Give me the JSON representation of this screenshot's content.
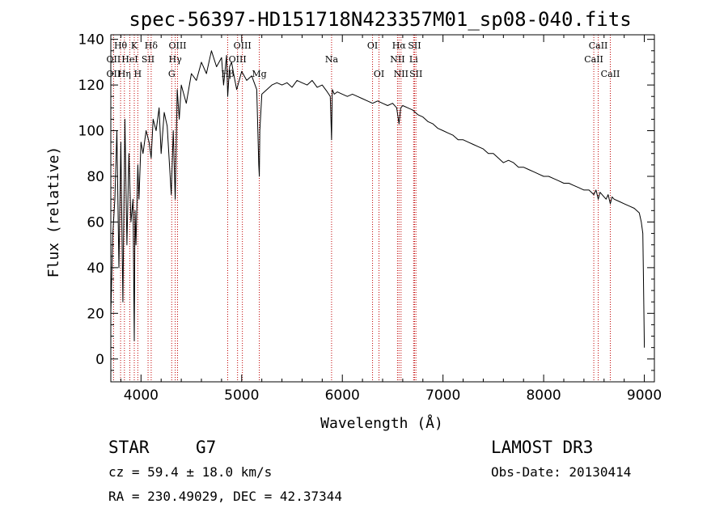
{
  "chart_data": {
    "type": "line",
    "title": "spec-56397-HD151718N423357M01_sp08-040.fits",
    "xlabel": "Wavelength (Å)",
    "ylabel": "Flux (relative)",
    "xlim": [
      3700,
      9100
    ],
    "ylim": [
      -10,
      142
    ],
    "xticks": [
      4000,
      5000,
      6000,
      7000,
      8000,
      9000
    ],
    "xtick_labels": [
      "4000",
      "5000",
      "6000",
      "7000",
      "8000",
      "9000"
    ],
    "yticks": [
      0,
      20,
      40,
      60,
      80,
      100,
      120,
      140
    ],
    "ytick_labels": [
      "0",
      "20",
      "40",
      "60",
      "80",
      "100",
      "120",
      "140"
    ],
    "series": [
      {
        "name": "spectrum",
        "color": "#000000",
        "x": [
          3700,
          3720,
          3740,
          3760,
          3780,
          3800,
          3820,
          3840,
          3860,
          3880,
          3900,
          3920,
          3933,
          3940,
          3950,
          3968,
          3980,
          4000,
          4020,
          4050,
          4080,
          4101,
          4120,
          4150,
          4180,
          4200,
          4230,
          4260,
          4300,
          4320,
          4340,
          4360,
          4380,
          4400,
          4450,
          4500,
          4550,
          4600,
          4650,
          4700,
          4750,
          4800,
          4820,
          4850,
          4861,
          4880,
          4900,
          4920,
          4950,
          5000,
          5050,
          5100,
          5150,
          5170,
          5175,
          5180,
          5200,
          5250,
          5300,
          5350,
          5400,
          5450,
          5500,
          5550,
          5600,
          5650,
          5700,
          5750,
          5800,
          5850,
          5880,
          5893,
          5900,
          5920,
          5950,
          6000,
          6050,
          6100,
          6150,
          6200,
          6250,
          6300,
          6350,
          6400,
          6450,
          6500,
          6540,
          6563,
          6580,
          6600,
          6650,
          6700,
          6750,
          6800,
          6850,
          6900,
          6950,
          7000,
          7050,
          7100,
          7150,
          7200,
          7250,
          7300,
          7350,
          7400,
          7450,
          7500,
          7550,
          7600,
          7650,
          7700,
          7750,
          7800,
          7850,
          7900,
          7950,
          8000,
          8050,
          8100,
          8150,
          8200,
          8250,
          8300,
          8350,
          8400,
          8450,
          8498,
          8520,
          8542,
          8560,
          8580,
          8600,
          8620,
          8640,
          8662,
          8680,
          8700,
          8750,
          8800,
          8850,
          8900,
          8950,
          8970,
          8985,
          8990,
          9000
        ],
        "y": [
          20,
          55,
          70,
          100,
          40,
          95,
          25,
          105,
          50,
          90,
          60,
          70,
          8,
          65,
          50,
          85,
          70,
          95,
          90,
          100,
          95,
          88,
          105,
          100,
          110,
          90,
          108,
          102,
          72,
          100,
          70,
          118,
          105,
          120,
          112,
          125,
          122,
          130,
          125,
          135,
          128,
          132,
          120,
          133,
          115,
          128,
          130,
          125,
          118,
          126,
          122,
          124,
          118,
          85,
          80,
          100,
          116,
          118,
          120,
          121,
          120,
          121,
          119,
          122,
          121,
          120,
          122,
          119,
          120,
          117,
          115,
          96,
          118,
          116,
          117,
          116,
          115,
          116,
          115,
          114,
          113,
          112,
          113,
          112,
          111,
          112,
          110,
          103,
          110,
          111,
          110,
          109,
          107,
          106,
          104,
          103,
          101,
          100,
          99,
          98,
          96,
          96,
          95,
          94,
          93,
          92,
          90,
          90,
          88,
          86,
          87,
          86,
          84,
          84,
          83,
          82,
          81,
          80,
          80,
          79,
          78,
          77,
          77,
          76,
          75,
          74,
          74,
          72,
          74,
          70,
          73,
          72,
          71,
          70,
          72,
          68,
          71,
          70,
          69,
          68,
          67,
          66,
          64,
          60,
          55,
          40,
          5
        ]
      }
    ],
    "lines": [
      {
        "name": "Hθ",
        "x": 3797,
        "row": 0
      },
      {
        "name": "K",
        "x": 3933,
        "row": 0
      },
      {
        "name": "Hδ",
        "x": 4101,
        "row": 0
      },
      {
        "name": "OII",
        "x": 3727,
        "row": 1
      },
      {
        "name": "HeI",
        "x": 3889,
        "row": 1
      },
      {
        "name": "SII",
        "x": 4070,
        "row": 1
      },
      {
        "name": "OII",
        "x": 3727,
        "row": 2
      },
      {
        "name": "Hη",
        "x": 3835,
        "row": 2
      },
      {
        "name": "H",
        "x": 3968,
        "row": 2
      },
      {
        "name": "OIII",
        "x": 4363,
        "row": 0
      },
      {
        "name": "Hγ",
        "x": 4340,
        "row": 1
      },
      {
        "name": "G",
        "x": 4305,
        "row": 2
      },
      {
        "name": "OIII",
        "x": 5007,
        "row": 0
      },
      {
        "name": "OIII",
        "x": 4959,
        "row": 1
      },
      {
        "name": "Hβ",
        "x": 4861,
        "row": 2
      },
      {
        "name": "Mg",
        "x": 5175,
        "row": 2
      },
      {
        "name": "Na",
        "x": 5893,
        "row": 1
      },
      {
        "name": "OI",
        "x": 6300,
        "row": 0
      },
      {
        "name": "OI",
        "x": 6364,
        "row": 2
      },
      {
        "name": "Hα",
        "x": 6563,
        "row": 0
      },
      {
        "name": "SII",
        "x": 6717,
        "row": 0
      },
      {
        "name": "NII",
        "x": 6548,
        "row": 1
      },
      {
        "name": "Li",
        "x": 6708,
        "row": 1
      },
      {
        "name": "NII",
        "x": 6583,
        "row": 2
      },
      {
        "name": "SII",
        "x": 6731,
        "row": 2
      },
      {
        "name": "CaII",
        "x": 8542,
        "row": 0
      },
      {
        "name": "CaII",
        "x": 8498,
        "row": 1
      },
      {
        "name": "CaII",
        "x": 8662,
        "row": 2
      }
    ],
    "line_color": "#c00000"
  },
  "info": {
    "object_type": "STAR",
    "subclass": "G7",
    "survey": "LAMOST DR3",
    "redshift_text": "cz = 59.4 ± 18.0 km/s",
    "obs_date": "Obs-Date: 20130414",
    "coords": "RA = 230.49029, DEC =  42.37344"
  }
}
